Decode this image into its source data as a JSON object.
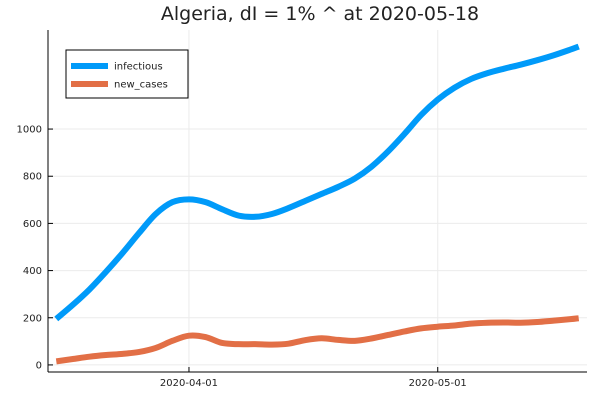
{
  "chart_data": {
    "type": "line",
    "title": "Algeria,  dI = 1% ^ at 2020-05-18",
    "xlabel": "",
    "ylabel": "",
    "x_axis": {
      "type": "date",
      "range": [
        "2020-03-15",
        "2020-05-19"
      ],
      "ticks": [
        "2020-04-01",
        "2020-05-01"
      ]
    },
    "y_axis": {
      "range": [
        -30,
        1420
      ],
      "ticks": [
        0,
        200,
        400,
        600,
        800,
        1000
      ]
    },
    "grid": true,
    "legend_position": "top-left",
    "series": [
      {
        "name": "infectious",
        "color": "#009AF9",
        "x": [
          "2020-03-16",
          "2020-03-18",
          "2020-03-20",
          "2020-03-22",
          "2020-03-24",
          "2020-03-26",
          "2020-03-28",
          "2020-03-30",
          "2020-04-01",
          "2020-04-03",
          "2020-04-05",
          "2020-04-07",
          "2020-04-09",
          "2020-04-11",
          "2020-04-13",
          "2020-04-15",
          "2020-04-17",
          "2020-04-19",
          "2020-04-21",
          "2020-04-23",
          "2020-04-25",
          "2020-04-27",
          "2020-04-29",
          "2020-05-01",
          "2020-05-03",
          "2020-05-05",
          "2020-05-07",
          "2020-05-09",
          "2020-05-11",
          "2020-05-13",
          "2020-05-15",
          "2020-05-17",
          "2020-05-18"
        ],
        "values": [
          195,
          255,
          320,
          395,
          475,
          560,
          640,
          690,
          702,
          690,
          660,
          633,
          628,
          640,
          665,
          695,
          725,
          755,
          790,
          840,
          905,
          980,
          1060,
          1125,
          1175,
          1212,
          1237,
          1256,
          1273,
          1292,
          1313,
          1337,
          1350
        ]
      },
      {
        "name": "new_cases",
        "color": "#E26F46",
        "x": [
          "2020-03-16",
          "2020-03-18",
          "2020-03-20",
          "2020-03-22",
          "2020-03-24",
          "2020-03-26",
          "2020-03-28",
          "2020-03-30",
          "2020-04-01",
          "2020-04-03",
          "2020-04-05",
          "2020-04-07",
          "2020-04-09",
          "2020-04-11",
          "2020-04-13",
          "2020-04-15",
          "2020-04-17",
          "2020-04-19",
          "2020-04-21",
          "2020-04-23",
          "2020-04-25",
          "2020-04-27",
          "2020-04-29",
          "2020-05-01",
          "2020-05-03",
          "2020-05-05",
          "2020-05-07",
          "2020-05-09",
          "2020-05-11",
          "2020-05-13",
          "2020-05-15",
          "2020-05-17",
          "2020-05-18"
        ],
        "values": [
          15,
          25,
          35,
          42,
          47,
          55,
          72,
          102,
          124,
          118,
          93,
          88,
          88,
          86,
          90,
          105,
          113,
          106,
          102,
          112,
          127,
          142,
          155,
          162,
          167,
          175,
          179,
          180,
          179,
          182,
          188,
          194,
          198
        ]
      }
    ]
  }
}
